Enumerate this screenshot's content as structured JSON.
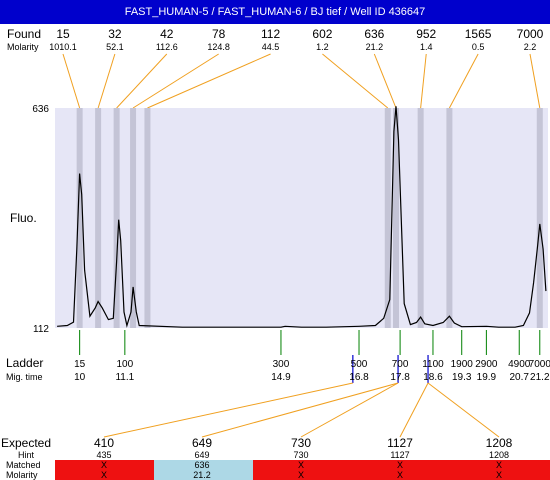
{
  "title": "FAST_HUMAN-5 / FAST_HUMAN-6 / BJ tief / Well ID 436647",
  "labels": {
    "found": "Found",
    "molarity": "Molarity",
    "fluo": "Fluo.",
    "ladder": "Ladder",
    "mig_time": "Mig. time",
    "expected": "Expected",
    "hint": "Hint",
    "matched": "Matched",
    "molarity_row": "Molarity"
  },
  "colors": {
    "title_bg": "#0000cc",
    "plot_bg": "#e6e6f6",
    "peak_band": "#c4c4d6",
    "found_line": "#f0a020",
    "ladder_tick": "#008000",
    "marker_tick": "#0000cc",
    "matched_red": "#ee1111",
    "matched_blue": "#add8e6"
  },
  "chart_data": {
    "type": "line",
    "xlabel": "",
    "ylabel": "Fluo.",
    "ylim": [
      112,
      636
    ],
    "y_ticks": [
      "636",
      "112"
    ],
    "found": [
      {
        "size": "15",
        "molarity": "1010.1",
        "time": 10.0
      },
      {
        "size": "32",
        "molarity": "52.1",
        "time": 10.45
      },
      {
        "size": "42",
        "molarity": "112.6",
        "time": 10.9
      },
      {
        "size": "78",
        "molarity": "124.8",
        "time": 11.3
      },
      {
        "size": "112",
        "molarity": "44.5",
        "time": 11.65
      },
      {
        "size": "602",
        "molarity": "1.2",
        "time": 17.5
      },
      {
        "size": "636",
        "molarity": "21.2",
        "time": 17.7
      },
      {
        "size": "952",
        "molarity": "1.4",
        "time": 18.3
      },
      {
        "size": "1565",
        "molarity": "0.5",
        "time": 19.0
      },
      {
        "size": "7000",
        "molarity": "2.2",
        "time": 21.2
      }
    ],
    "ladder": [
      {
        "size": "15",
        "time": "10"
      },
      {
        "size": "100",
        "time": "11.1"
      },
      {
        "size": "300",
        "time": "14.9"
      },
      {
        "size": "500",
        "time": "16.8"
      },
      {
        "size": "700",
        "time": "17.8"
      },
      {
        "size": "1100",
        "time": "18.6"
      },
      {
        "size": "1900",
        "time": "19.3"
      },
      {
        "size": "2900",
        "time": "19.9"
      },
      {
        "size": "4900",
        "time": "20.7"
      },
      {
        "size": "7000",
        "time": "21.2"
      }
    ],
    "marker_times": [
      16.65,
      17.75,
      18.48
    ],
    "trace": [
      [
        9.45,
        116
      ],
      [
        9.7,
        118
      ],
      [
        9.85,
        126
      ],
      [
        9.93,
        300
      ],
      [
        10.0,
        480
      ],
      [
        10.05,
        430
      ],
      [
        10.12,
        250
      ],
      [
        10.25,
        140
      ],
      [
        10.38,
        160
      ],
      [
        10.45,
        175
      ],
      [
        10.55,
        160
      ],
      [
        10.7,
        132
      ],
      [
        10.82,
        135
      ],
      [
        10.9,
        270
      ],
      [
        10.95,
        370
      ],
      [
        11.0,
        320
      ],
      [
        11.08,
        150
      ],
      [
        11.15,
        118
      ],
      [
        11.25,
        150
      ],
      [
        11.3,
        210
      ],
      [
        11.38,
        150
      ],
      [
        11.45,
        118
      ],
      [
        12.5,
        114
      ],
      [
        14.0,
        114
      ],
      [
        14.9,
        114
      ],
      [
        15.0,
        116
      ],
      [
        15.4,
        114
      ],
      [
        16.0,
        114
      ],
      [
        16.8,
        116
      ],
      [
        17.2,
        118
      ],
      [
        17.4,
        135
      ],
      [
        17.55,
        180
      ],
      [
        17.65,
        580
      ],
      [
        17.7,
        640
      ],
      [
        17.76,
        560
      ],
      [
        17.9,
        170
      ],
      [
        18.05,
        120
      ],
      [
        18.2,
        125
      ],
      [
        18.3,
        138
      ],
      [
        18.4,
        122
      ],
      [
        18.6,
        118
      ],
      [
        18.85,
        125
      ],
      [
        19.0,
        140
      ],
      [
        19.12,
        124
      ],
      [
        19.3,
        115
      ],
      [
        19.9,
        116
      ],
      [
        20.2,
        114
      ],
      [
        20.6,
        114
      ],
      [
        20.8,
        118
      ],
      [
        20.95,
        148
      ],
      [
        21.05,
        220
      ],
      [
        21.15,
        310
      ],
      [
        21.2,
        360
      ],
      [
        21.28,
        300
      ],
      [
        21.35,
        200
      ]
    ],
    "expected": [
      {
        "size": "410",
        "hint": "435",
        "matched": "X",
        "molarity": "X",
        "status": "unmatched"
      },
      {
        "size": "649",
        "hint": "649",
        "matched": "636",
        "molarity": "21.2",
        "status": "matched"
      },
      {
        "size": "730",
        "hint": "730",
        "matched": "X",
        "molarity": "X",
        "status": "unmatched"
      },
      {
        "size": "1127",
        "hint": "1127",
        "matched": "X",
        "molarity": "X",
        "status": "unmatched"
      },
      {
        "size": "1208",
        "hint": "1208",
        "matched": "X",
        "molarity": "X",
        "status": "unmatched"
      }
    ]
  }
}
